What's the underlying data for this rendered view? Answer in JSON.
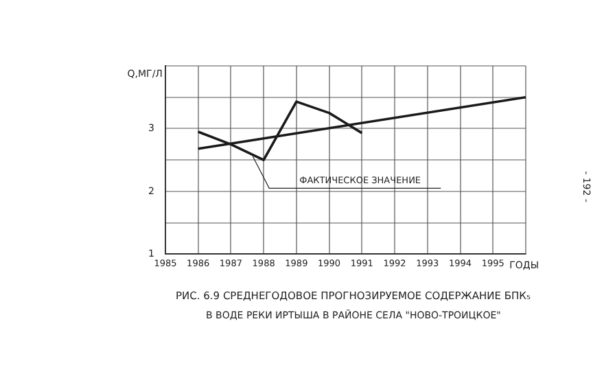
{
  "chart_data": {
    "type": "line",
    "title": "РИС. 6.9 СРЕДНЕГОДОВОЕ ПРОГНОЗИРУЕМОЕ СОДЕРЖАНИЕ БПК₅",
    "subtitle": "В ВОДЕ РЕКИ ИРТЫША В РАЙОНЕ СЕЛА \"НОВО-ТРОИЦКОЕ\"",
    "xlabel": "ГОДЫ",
    "ylabel": "Q,МГ/Л",
    "annotations": [
      "- 192 -"
    ],
    "series": [
      {
        "name": "ФАКТИЧЕСКОЕ ЗНАЧЕНИЕ",
        "color": "#1a1a1a",
        "x": [
          1986,
          1987,
          1988,
          1989,
          1990,
          1991
        ],
        "values": [
          2.95,
          2.75,
          2.5,
          3.43,
          3.25,
          2.93
        ]
      },
      {
        "color": "#1a1a1a",
        "x": [
          1986,
          1996
        ],
        "values": [
          2.68,
          3.5
        ]
      }
    ],
    "xlim": [
      1985,
      1996
    ],
    "xticks": [
      1985,
      1986,
      1987,
      1988,
      1989,
      1990,
      1991,
      1992,
      1993,
      1994,
      1995,
      {
        "value": 1996,
        "label": null
      }
    ],
    "ylim": [
      1,
      4
    ],
    "yticks": [
      1,
      {
        "value": 1.5,
        "label": null
      },
      2,
      {
        "value": 2.5,
        "label": null
      },
      3,
      {
        "value": 3.5,
        "label": null
      },
      {
        "value": 4,
        "label": null
      }
    ],
    "grid": true,
    "legend": false,
    "marker": "none",
    "line_style": "solid"
  }
}
